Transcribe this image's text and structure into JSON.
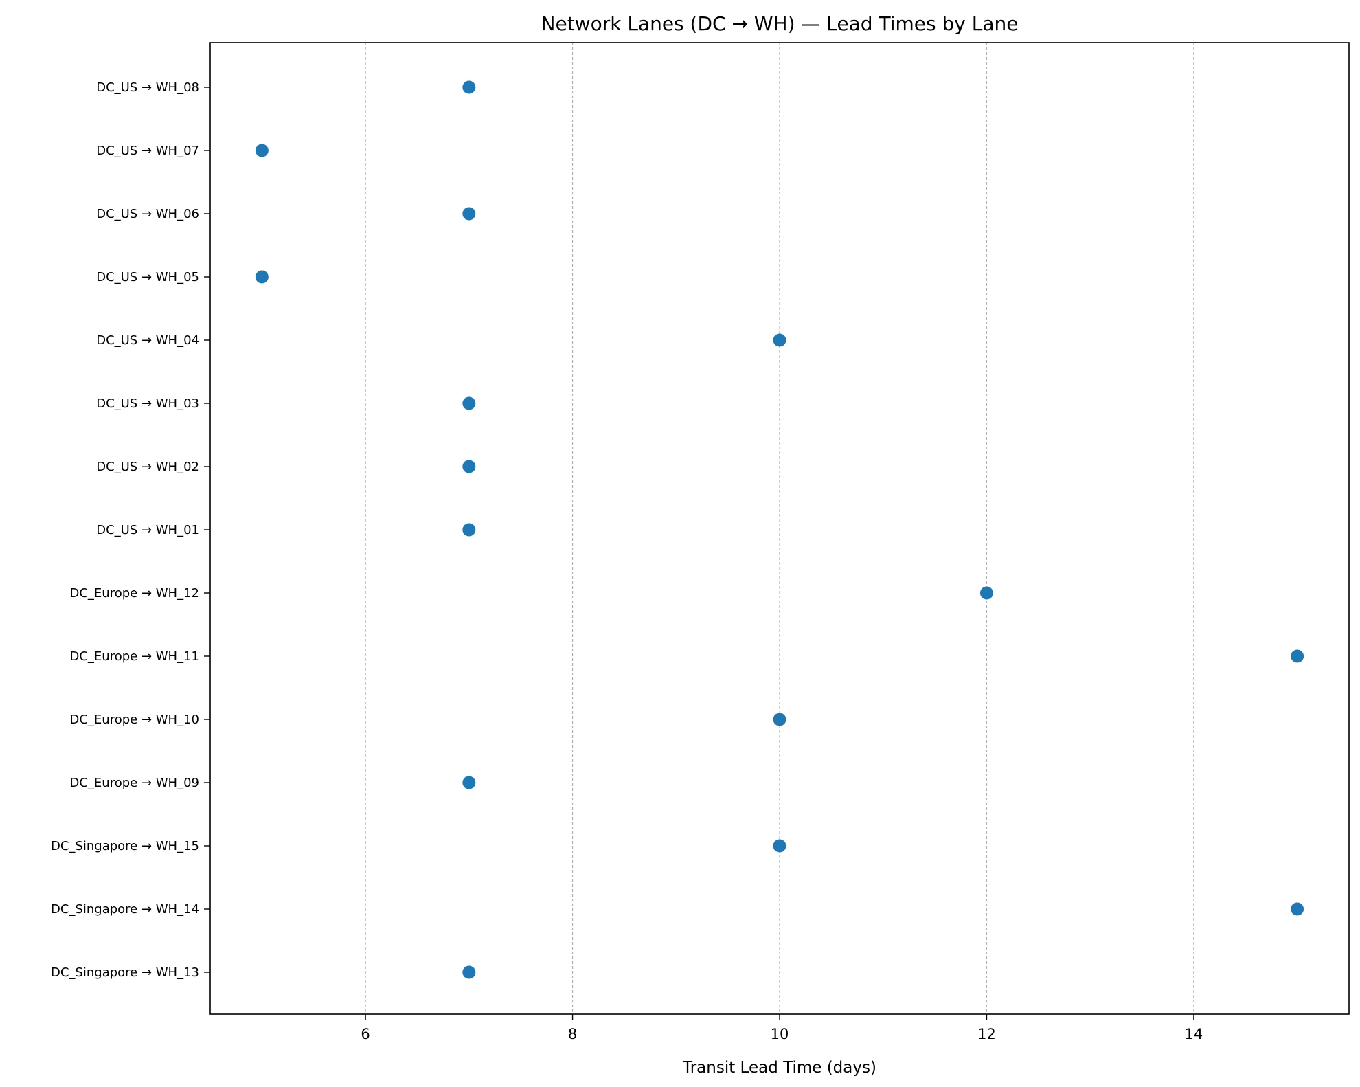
{
  "chart_data": {
    "type": "scatter",
    "title": "Network Lanes (DC → WH) — Lead Times by Lane",
    "xlabel": "Transit Lead Time (days)",
    "ylabel": "",
    "xlim": [
      4.5,
      15.5
    ],
    "xticks": [
      6,
      8,
      10,
      12,
      14
    ],
    "grid": "x-dashed",
    "lanes": [
      "DC_US → WH_08",
      "DC_US → WH_07",
      "DC_US → WH_06",
      "DC_US → WH_05",
      "DC_US → WH_04",
      "DC_US → WH_03",
      "DC_US → WH_02",
      "DC_US → WH_01",
      "DC_Europe → WH_12",
      "DC_Europe → WH_11",
      "DC_Europe → WH_10",
      "DC_Europe → WH_09",
      "DC_Singapore → WH_15",
      "DC_Singapore → WH_14",
      "DC_Singapore → WH_13"
    ],
    "values": [
      7,
      5,
      7,
      5,
      10,
      7,
      7,
      7,
      12,
      15,
      10,
      7,
      10,
      15,
      7
    ],
    "point_color": "#1f77b4"
  }
}
